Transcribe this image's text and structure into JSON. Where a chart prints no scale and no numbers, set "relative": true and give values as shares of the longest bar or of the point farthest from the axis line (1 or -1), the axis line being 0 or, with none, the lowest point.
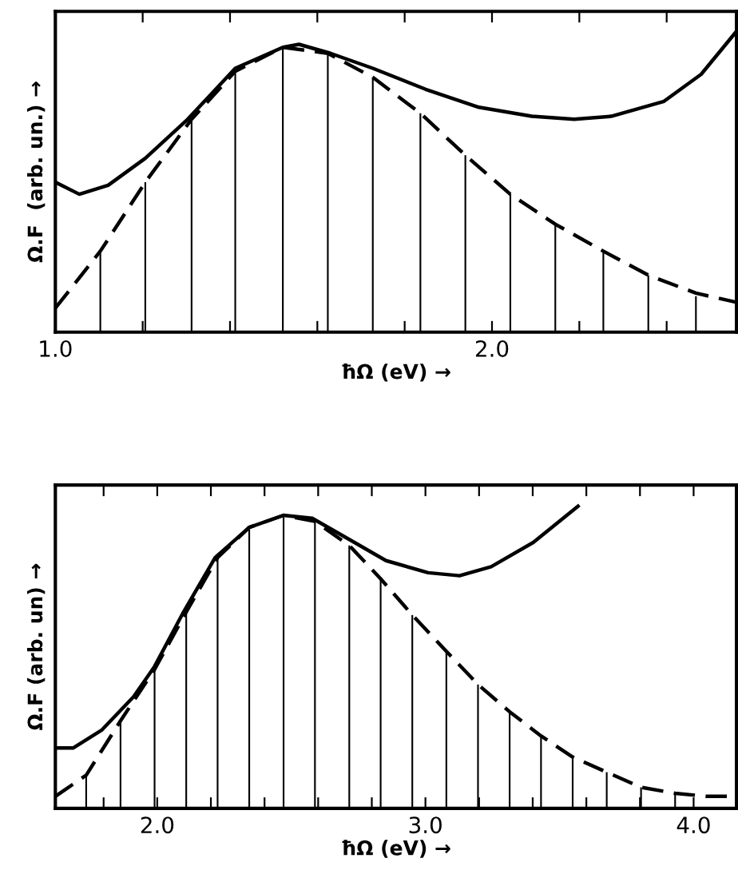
{
  "chart_data": [
    {
      "type": "line",
      "relative": true,
      "xlabel": "ħΩ (eV) →",
      "ylabel": "Ω.F  (arb. un.) →",
      "xlim": [
        1.0,
        2.56
      ],
      "xticks": [
        {
          "value": 1.0,
          "label": "1.0"
        },
        {
          "value": 1.2,
          "label": null
        },
        {
          "value": 1.4,
          "label": null
        },
        {
          "value": 1.6,
          "label": null
        },
        {
          "value": 1.8,
          "label": null
        },
        {
          "value": 2.0,
          "label": "2.0"
        },
        {
          "value": 2.2,
          "label": null
        },
        {
          "value": 2.4,
          "label": null
        }
      ],
      "tick_labels": "x",
      "grid": false,
      "legend": false,
      "marker": "none",
      "series": [
        {
          "line_style": "solid",
          "color": "#000000",
          "x": [
            1.0,
            1.055,
            1.121,
            1.206,
            1.303,
            1.412,
            1.521,
            1.558,
            1.63,
            1.727,
            1.848,
            1.97,
            2.091,
            2.188,
            2.273,
            2.394,
            2.479,
            2.558
          ],
          "values": [
            0.5,
            0.46,
            0.49,
            0.58,
            0.71,
            0.88,
            0.95,
            0.96,
            0.93,
            0.88,
            0.81,
            0.75,
            0.72,
            0.71,
            0.72,
            0.77,
            0.86,
            1.0
          ]
        },
        {
          "line_style": "dashed",
          "color": "#000000",
          "x": [
            1.0,
            1.103,
            1.206,
            1.312,
            1.412,
            1.521,
            1.624,
            1.727,
            1.836,
            1.939,
            2.042,
            2.145,
            2.255,
            2.358,
            2.467,
            2.558
          ],
          "values": [
            0.08,
            0.27,
            0.5,
            0.71,
            0.87,
            0.95,
            0.93,
            0.85,
            0.73,
            0.59,
            0.46,
            0.36,
            0.27,
            0.19,
            0.13,
            0.1
          ]
        },
        {
          "type": "bar",
          "color": "#000000",
          "x": [
            1.103,
            1.206,
            1.312,
            1.412,
            1.521,
            1.624,
            1.727,
            1.836,
            1.939,
            2.042,
            2.145,
            2.255,
            2.358,
            2.467
          ],
          "values": [
            0.27,
            0.5,
            0.71,
            0.87,
            0.95,
            0.93,
            0.85,
            0.73,
            0.59,
            0.46,
            0.36,
            0.27,
            0.19,
            0.12
          ]
        }
      ]
    },
    {
      "type": "line",
      "relative": true,
      "xlabel": "ħΩ (eV) →",
      "ylabel": "Ω.F (arb. un) →",
      "xlim": [
        1.62,
        4.16
      ],
      "xticks": [
        {
          "value": 1.8,
          "label": null
        },
        {
          "value": 2.0,
          "label": "2.0"
        },
        {
          "value": 2.2,
          "label": null
        },
        {
          "value": 2.4,
          "label": null
        },
        {
          "value": 2.6,
          "label": null
        },
        {
          "value": 2.8,
          "label": null
        },
        {
          "value": 3.0,
          "label": "3.0"
        },
        {
          "value": 3.2,
          "label": null
        },
        {
          "value": 3.4,
          "label": null
        },
        {
          "value": 3.6,
          "label": null
        },
        {
          "value": 3.8,
          "label": null
        },
        {
          "value": 4.0,
          "label": "4.0"
        }
      ],
      "tick_labels": "x",
      "grid": false,
      "legend": false,
      "marker": "none",
      "series": [
        {
          "line_style": "solid",
          "color": "#000000",
          "x": [
            1.62,
            1.686,
            1.794,
            1.912,
            1.99,
            2.098,
            2.216,
            2.343,
            2.471,
            2.578,
            2.716,
            2.853,
            3.01,
            3.127,
            3.245,
            3.402,
            3.569
          ],
          "values": [
            0.2,
            0.2,
            0.26,
            0.37,
            0.47,
            0.65,
            0.83,
            0.93,
            0.97,
            0.96,
            0.89,
            0.82,
            0.78,
            0.77,
            0.8,
            0.88,
            1.0
          ]
        },
        {
          "line_style": "dashed",
          "color": "#000000",
          "x": [
            1.62,
            1.735,
            1.863,
            1.99,
            2.108,
            2.225,
            2.343,
            2.471,
            2.588,
            2.716,
            2.833,
            2.951,
            3.078,
            3.196,
            3.314,
            3.431,
            3.549,
            3.676,
            3.804,
            3.931,
            4.049,
            4.157
          ],
          "values": [
            0.04,
            0.11,
            0.29,
            0.46,
            0.65,
            0.83,
            0.93,
            0.97,
            0.95,
            0.87,
            0.76,
            0.64,
            0.52,
            0.41,
            0.32,
            0.24,
            0.17,
            0.12,
            0.07,
            0.05,
            0.04,
            0.04
          ]
        },
        {
          "type": "bar",
          "color": "#000000",
          "x": [
            1.735,
            1.863,
            1.99,
            2.108,
            2.225,
            2.343,
            2.471,
            2.588,
            2.716,
            2.833,
            2.951,
            3.078,
            3.196,
            3.314,
            3.431,
            3.549,
            3.676,
            3.804,
            3.931
          ],
          "values": [
            0.11,
            0.29,
            0.46,
            0.65,
            0.83,
            0.93,
            0.97,
            0.95,
            0.87,
            0.76,
            0.64,
            0.52,
            0.41,
            0.32,
            0.24,
            0.17,
            0.12,
            0.07,
            0.05
          ]
        }
      ]
    }
  ]
}
